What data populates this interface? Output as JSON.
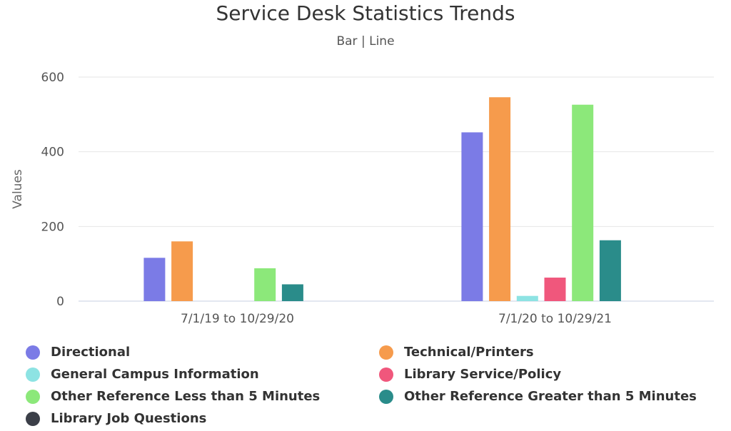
{
  "chart_data": {
    "type": "bar",
    "title": "Service Desk Statistics Trends",
    "subtitle": {
      "bar": "Bar",
      "sep": "|",
      "line": "Line"
    },
    "ylabel": "Values",
    "xlabel": "",
    "ylim": [
      0,
      600
    ],
    "yticks": [
      "0",
      "200",
      "400",
      "600"
    ],
    "grid": true,
    "legend_position": "bottom",
    "categories": [
      "7/1/19 to 10/29/20",
      "7/1/20 to 10/29/21"
    ],
    "series": [
      {
        "name": "Directional",
        "color": "#7b7be6",
        "values": [
          116,
          452
        ]
      },
      {
        "name": "Technical/Printers",
        "color": "#f69b4c",
        "values": [
          160,
          546
        ]
      },
      {
        "name": "General Campus Information",
        "color": "#8de3e3",
        "values": [
          0,
          14
        ]
      },
      {
        "name": "Library Service/Policy",
        "color": "#f0577c",
        "values": [
          0,
          63
        ]
      },
      {
        "name": "Other Reference Less than 5 Minutes",
        "color": "#8ce87a",
        "values": [
          88,
          526
        ]
      },
      {
        "name": "Other Reference Greater than 5 Minutes",
        "color": "#2a8c8a",
        "values": [
          45,
          163
        ]
      },
      {
        "name": "Library Job Questions",
        "color": "#3b3f48",
        "values": [
          0,
          0
        ]
      }
    ]
  }
}
